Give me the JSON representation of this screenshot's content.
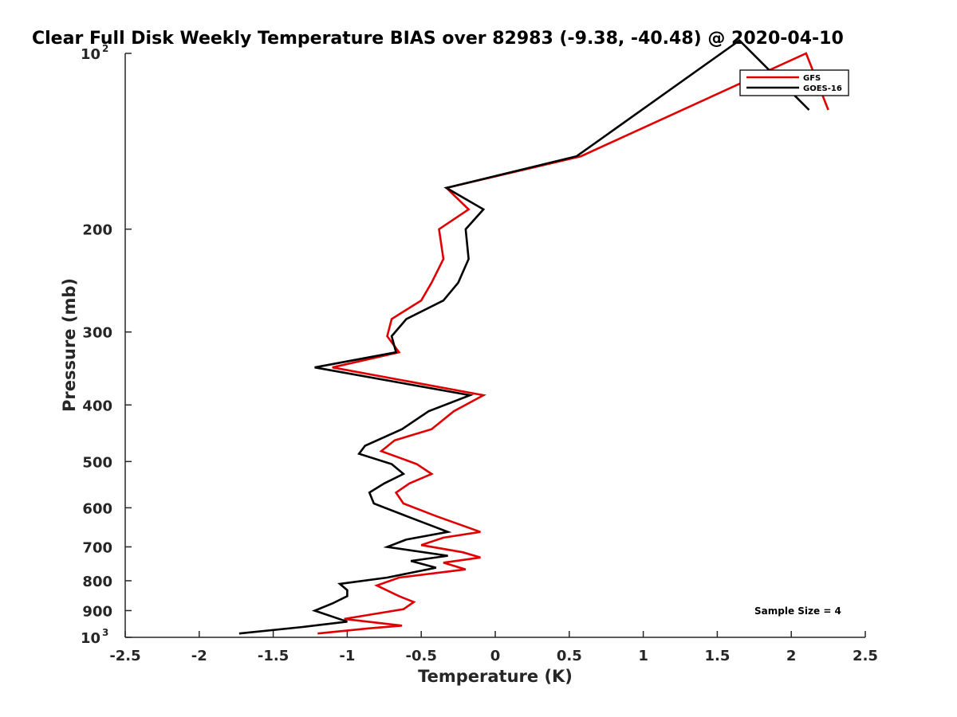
{
  "chart_data": {
    "type": "line",
    "title": "Clear Full Disk Weekly Temperature BIAS over 82983 (-9.38, -40.48) @ 2020-04-10",
    "xlabel": "Temperature (K)",
    "ylabel": "Pressure (mb)",
    "xlim": [
      -2.5,
      2.5
    ],
    "ylim": [
      100,
      1000
    ],
    "y_scale": "log",
    "y_reversed": true,
    "grid": false,
    "legend_position": "top-right",
    "x_ticks": [
      -2.5,
      -2,
      -1.5,
      -1,
      -0.5,
      0,
      0.5,
      1,
      1.5,
      2,
      2.5
    ],
    "x_tick_labels": [
      "-2.5",
      "-2",
      "-1.5",
      "-1",
      "-0.5",
      "0",
      "0.5",
      "1",
      "1.5",
      "2",
      "2.5"
    ],
    "y_ticks": [
      {
        "value": 100,
        "base": "10",
        "exp": "2"
      },
      {
        "value": 200,
        "label": "200"
      },
      {
        "value": 300,
        "label": "300"
      },
      {
        "value": 400,
        "label": "400"
      },
      {
        "value": 500,
        "label": "500"
      },
      {
        "value": 600,
        "label": "600"
      },
      {
        "value": 700,
        "label": "700"
      },
      {
        "value": 800,
        "label": "800"
      },
      {
        "value": 900,
        "label": "900"
      },
      {
        "value": 1000,
        "base": "10",
        "exp": "3"
      }
    ],
    "series": [
      {
        "name": "GFS",
        "color": "#e00000",
        "points": [
          [
            2.25,
            125
          ],
          [
            2.1,
            100
          ],
          [
            0.58,
            150
          ],
          [
            -0.33,
            170
          ],
          [
            -0.18,
            185
          ],
          [
            -0.38,
            200
          ],
          [
            -0.35,
            225
          ],
          [
            -0.43,
            247
          ],
          [
            -0.5,
            265
          ],
          [
            -0.7,
            285
          ],
          [
            -0.73,
            305
          ],
          [
            -0.65,
            325
          ],
          [
            -1.1,
            345
          ],
          [
            -0.08,
            385
          ],
          [
            -0.28,
            410
          ],
          [
            -0.43,
            440
          ],
          [
            -0.68,
            460
          ],
          [
            -0.77,
            480
          ],
          [
            -0.53,
            505
          ],
          [
            -0.43,
            525
          ],
          [
            -0.58,
            545
          ],
          [
            -0.67,
            565
          ],
          [
            -0.62,
            590
          ],
          [
            -0.4,
            620
          ],
          [
            -0.1,
            660
          ],
          [
            -0.35,
            675
          ],
          [
            -0.5,
            695
          ],
          [
            -0.22,
            715
          ],
          [
            -0.1,
            730
          ],
          [
            -0.35,
            745
          ],
          [
            -0.2,
            765
          ],
          [
            -0.65,
            790
          ],
          [
            -0.8,
            815
          ],
          [
            -0.65,
            850
          ],
          [
            -0.55,
            870
          ],
          [
            -0.62,
            895
          ],
          [
            -1.02,
            930
          ],
          [
            -0.63,
            955
          ],
          [
            -0.85,
            965
          ],
          [
            -1.2,
            985
          ]
        ]
      },
      {
        "name": "GOES-16",
        "color": "#000000",
        "points": [
          [
            2.12,
            125
          ],
          [
            1.65,
            95
          ],
          [
            0.55,
            150
          ],
          [
            -0.33,
            170
          ],
          [
            -0.08,
            185
          ],
          [
            -0.2,
            200
          ],
          [
            -0.18,
            225
          ],
          [
            -0.25,
            247
          ],
          [
            -0.35,
            265
          ],
          [
            -0.6,
            285
          ],
          [
            -0.7,
            305
          ],
          [
            -0.67,
            325
          ],
          [
            -1.22,
            345
          ],
          [
            -0.17,
            385
          ],
          [
            -0.45,
            410
          ],
          [
            -0.63,
            440
          ],
          [
            -0.88,
            470
          ],
          [
            -0.92,
            485
          ],
          [
            -0.7,
            505
          ],
          [
            -0.62,
            525
          ],
          [
            -0.75,
            545
          ],
          [
            -0.85,
            565
          ],
          [
            -0.82,
            590
          ],
          [
            -0.6,
            620
          ],
          [
            -0.32,
            660
          ],
          [
            -0.6,
            680
          ],
          [
            -0.73,
            700
          ],
          [
            -0.32,
            725
          ],
          [
            -0.57,
            740
          ],
          [
            -0.4,
            760
          ],
          [
            -0.73,
            790
          ],
          [
            -1.05,
            810
          ],
          [
            -1.0,
            830
          ],
          [
            -1.0,
            850
          ],
          [
            -1.1,
            875
          ],
          [
            -1.22,
            900
          ],
          [
            -1.0,
            940
          ],
          [
            -1.3,
            960
          ],
          [
            -1.73,
            985
          ]
        ]
      }
    ],
    "annotations": [
      {
        "text": "Sample Size = 4",
        "x": 1.8,
        "y": 900
      }
    ]
  }
}
